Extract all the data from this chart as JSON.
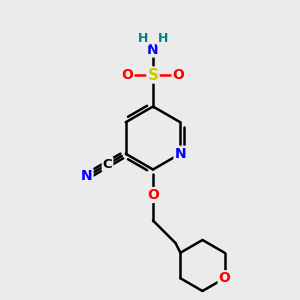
{
  "bg_color": "#ebebeb",
  "atom_colors": {
    "N": "#0000ff",
    "O": "#ff0000",
    "S": "#cccc00",
    "C": "#000000",
    "H": "#008080"
  },
  "bond_color": "#000000",
  "bond_width": 1.8,
  "figsize": [
    3.0,
    3.0
  ],
  "dpi": 100
}
